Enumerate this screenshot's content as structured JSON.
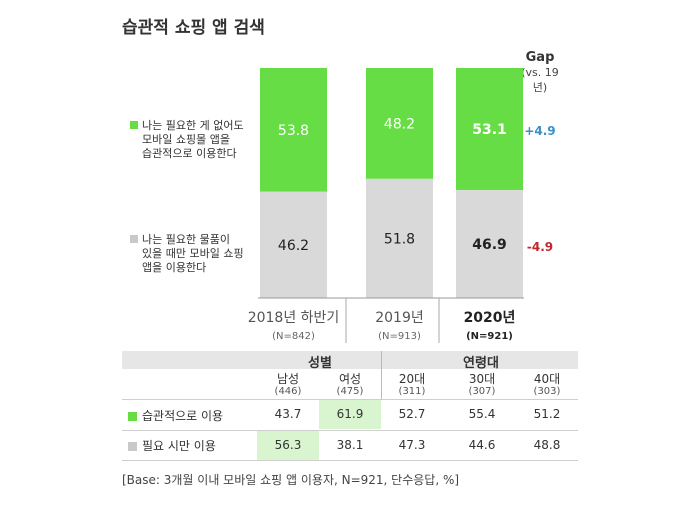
{
  "title": "습관적 쇼핑 앱 검색",
  "gap_header": {
    "title": "Gap",
    "subtitle": "(vs. 19년)"
  },
  "colors": {
    "habit": "#66dd44",
    "need": "#d9d9d9",
    "gap_pos": "#3a8fc8",
    "gap_neg": "#c0262b",
    "highlight": "#d9f5cf"
  },
  "legend": {
    "habit": [
      "나는 필요한 게 없어도",
      "모바일 쇼핑몰 앱을",
      "습관적으로 이용한다"
    ],
    "need": [
      "나는 필요한 물품이",
      "있을 때만 모바일 쇼핑",
      "앱을 이용한다"
    ]
  },
  "chart_data": {
    "type": "bar",
    "stacked": true,
    "percent_stacked": true,
    "categories": [
      "2018년 하반기",
      "2019년",
      "2020년"
    ],
    "category_bases": [
      "(N=842)",
      "(N=913)",
      "(N=921)"
    ],
    "highlight_category": "2020년",
    "series": [
      {
        "key": "habit",
        "values": [
          53.8,
          48.2,
          53.1
        ]
      },
      {
        "key": "need",
        "values": [
          46.2,
          51.8,
          46.9
        ]
      }
    ],
    "gap": {
      "habit": "+4.9",
      "need": "-4.9"
    },
    "ylim": [
      0,
      100
    ]
  },
  "table": {
    "groups": [
      {
        "label": "성별",
        "span": 2
      },
      {
        "label": "연령대",
        "span": 3
      }
    ],
    "columns": [
      {
        "label": "남성",
        "n": "(446)"
      },
      {
        "label": "여성",
        "n": "(475)"
      },
      {
        "label": "20대",
        "n": "(311)"
      },
      {
        "label": "30대",
        "n": "(307)"
      },
      {
        "label": "40대",
        "n": "(303)"
      }
    ],
    "rows": [
      {
        "key": "habit",
        "label": "습관적으로 이용",
        "values": [
          "43.7",
          "61.9",
          "52.7",
          "55.4",
          "51.2"
        ],
        "highlight": [
          1
        ]
      },
      {
        "key": "need",
        "label": "필요 시만 이용",
        "values": [
          "56.3",
          "38.1",
          "47.3",
          "44.6",
          "48.8"
        ],
        "highlight": [
          0
        ]
      }
    ]
  },
  "base_note": "[Base: 3개월 이내 모바일 쇼핑 앱 이용자, N=921, 단수응답, %]"
}
